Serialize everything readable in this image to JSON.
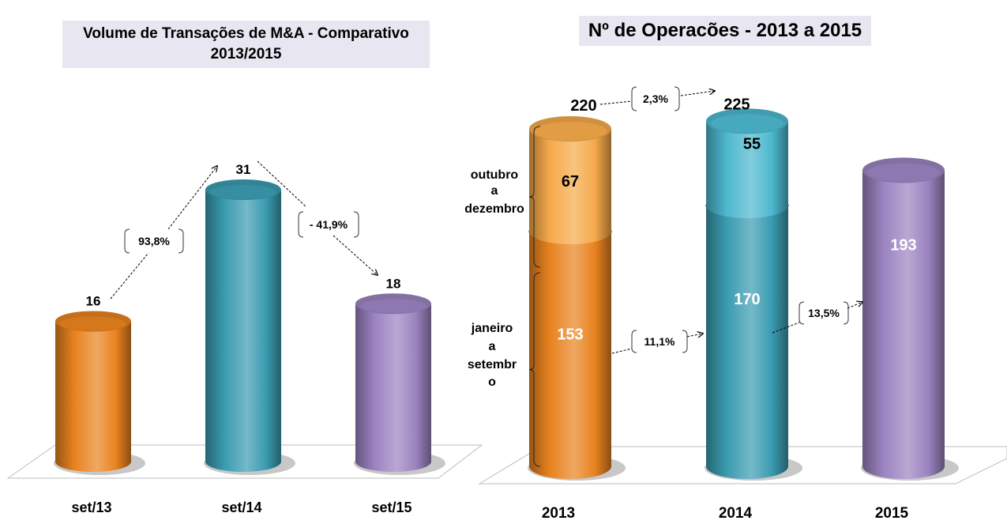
{
  "chart_data": [
    {
      "type": "bar",
      "title": "Volume de Transações de M&A - Comparativo 2013/2015",
      "title_lines": [
        "Volume de Transações de M&A - Comparativo",
        "2013/2015"
      ],
      "categories": [
        "set/13",
        "set/14",
        "set/15"
      ],
      "values": [
        16,
        31,
        18
      ],
      "value_labels": [
        "16",
        "31",
        "18"
      ],
      "colors": [
        "#e8821f",
        "#3a9bb0",
        "#9b83c0"
      ],
      "ylim": [
        0,
        35
      ],
      "grid": false,
      "legend": "none",
      "annotations": [
        {
          "from": "set/13",
          "to": "set/14",
          "text": "93,8%"
        },
        {
          "from": "set/14",
          "to": "set/15",
          "text": "- 41,9%"
        }
      ]
    },
    {
      "type": "bar",
      "stacked": true,
      "title": "Nº de Operacões  - 2013 a 2015",
      "categories": [
        "2013",
        "2014",
        "2015"
      ],
      "series": [
        {
          "name": "janeiro a setembro",
          "values": [
            153,
            170,
            193
          ],
          "colors": [
            "#e8821f",
            "#3a9bb0",
            "#9b83c0"
          ],
          "label_color": "#ffffff"
        },
        {
          "name": "outubro a dezembro",
          "values": [
            67,
            55,
            null
          ],
          "colors": [
            "#f5a94a",
            "#4db8cf",
            null
          ],
          "label_color": "#000000"
        }
      ],
      "totals": [
        220,
        225,
        null
      ],
      "ylim": [
        0,
        240
      ],
      "grid": false,
      "legend": "left (brace labels)",
      "side_labels": [
        {
          "series": "outubro a dezembro",
          "lines": [
            "outubro",
            "a",
            "dezembro"
          ]
        },
        {
          "series": "janeiro a setembro",
          "lines": [
            "janeiro",
            "a",
            "setembr",
            "o"
          ]
        }
      ],
      "annotations": [
        {
          "from": "2013 total",
          "to": "2014 total",
          "text": "2,3%"
        },
        {
          "from": "2013 jan-set",
          "to": "2014 jan-set",
          "text": "11,1%"
        },
        {
          "from": "2014 jan-set",
          "to": "2015 jan-set",
          "text": "13,5%"
        }
      ]
    }
  ]
}
